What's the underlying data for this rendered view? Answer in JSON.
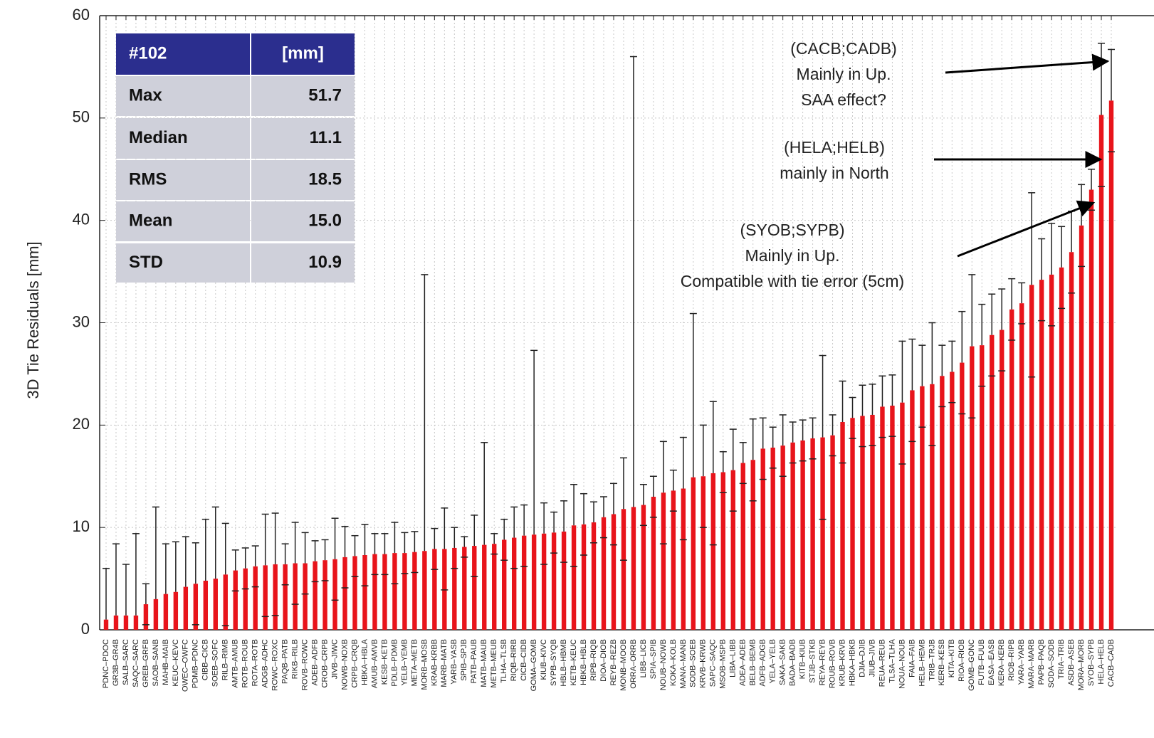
{
  "chart_data": {
    "type": "bar",
    "y_label": "3D Tie Residuals [mm]",
    "color": "#e8141b",
    "error_color": "#222222",
    "grid": true,
    "ylim": [
      0,
      60
    ],
    "yticks": [
      0,
      10,
      20,
      30,
      40,
      50,
      60
    ],
    "categories": [
      "PDNC–PDOC",
      "GR3B–GR4B",
      "SALB–SARC",
      "SAQC–SARC",
      "GREB–GRFB",
      "SAOB–SANB",
      "MAHB–MAIB",
      "KEUC–KEVC",
      "OWEC–OWFC",
      "PDMB–PDNC",
      "CIBB–CICB",
      "SOEB–SOFC",
      "RILB–RIMB",
      "AMTB–AMUB",
      "ROTB–ROUB",
      "ROTA–ROTB",
      "ADGB–ADHC",
      "ROWC–ROXC",
      "PAQB–PATB",
      "RIKB–RILB",
      "ROVB–ROWC",
      "ADEB–ADFB",
      "CROB–CRPB",
      "JIVB–JIWC",
      "NOWB–NOXB",
      "CRPB–CRQB",
      "HBKA–HBLA",
      "AMUB–AMVB",
      "KESB–KETB",
      "PDLB–PDMB",
      "YELB–YEMB",
      "META–METB",
      "MORB–MOSB",
      "KRAB–KRBB",
      "MARB–MATB",
      "YARB–YASB",
      "SPIB–SPJB",
      "PATB–PAUB",
      "MATB–MAUB",
      "METB–MEUB",
      "TLHA–TLSB",
      "RIQB–RIRB",
      "CICB–CIDB",
      "GOMA–GOMB",
      "KIUB–KIVC",
      "SYPB–SYQB",
      "HBLB–HBMB",
      "KETB–KEUC",
      "HBKB–HBLB",
      "RIPB–RIQB",
      "DIOA–DIOB",
      "REYB–REZB",
      "MONB–MOOB",
      "ORRA–ORRB",
      "LIBB–LICB",
      "SPIA–SPIB",
      "NOUB–NOWB",
      "KOKA–KOLB",
      "MANA–MANB",
      "SODB–SOEB",
      "KRVB–KRWB",
      "SAPC–SAQC",
      "MSOB–MSPB",
      "LIBA–LIBB",
      "ADEA–ADEB",
      "BELB–BEMB",
      "ADFB–ADGB",
      "YELA–YELB",
      "SAKA–SAKB",
      "BADA–BADB",
      "KITB–KIUB",
      "STJB–STKB",
      "REYA–REYB",
      "ROUB–ROVB",
      "KRUB–KRVB",
      "HBKA–HBKB",
      "DJIA–DJIB",
      "JIUB–JIVB",
      "REUA–REUB",
      "TLSA–TLHA",
      "NOUA–NOUB",
      "FAIA–FAIB",
      "HELB–HEMB",
      "TRIB–TRJB",
      "KERB–KESB",
      "KITA–KITB",
      "RIOA–RIOB",
      "GOMB–GONC",
      "FUTB–FUUB",
      "EASA–EASB",
      "KERA–KERB",
      "RIOB–RIPB",
      "YARA–YARB",
      "MARA–MARB",
      "PAPB–PAQB",
      "SODA–SODB",
      "TRIA–TRIB",
      "ASDB–ASEB",
      "MORA–MORB",
      "SYOB–SYPB",
      "HELA–HELB",
      "CACB–CADB"
    ],
    "values": [
      1.0,
      1.4,
      1.4,
      1.4,
      2.5,
      3.0,
      3.5,
      3.7,
      4.2,
      4.5,
      4.8,
      5.0,
      5.4,
      5.8,
      6.0,
      6.2,
      6.3,
      6.4,
      6.4,
      6.5,
      6.5,
      6.7,
      6.8,
      6.9,
      7.1,
      7.2,
      7.3,
      7.4,
      7.4,
      7.5,
      7.5,
      7.6,
      7.7,
      7.9,
      7.9,
      8.0,
      8.1,
      8.2,
      8.3,
      8.4,
      8.8,
      9.0,
      9.2,
      9.3,
      9.4,
      9.5,
      9.6,
      10.2,
      10.3,
      10.5,
      11.0,
      11.3,
      11.8,
      12.0,
      12.2,
      13.0,
      13.4,
      13.6,
      13.8,
      14.9,
      15.0,
      15.3,
      15.4,
      15.6,
      16.3,
      16.6,
      17.7,
      17.8,
      18.0,
      18.3,
      18.5,
      18.7,
      18.8,
      19.0,
      20.3,
      20.7,
      20.9,
      21.0,
      21.8,
      21.9,
      22.2,
      23.4,
      23.8,
      24.0,
      24.8,
      25.2,
      26.1,
      27.7,
      27.8,
      28.8,
      29.3,
      31.3,
      31.9,
      33.7,
      34.2,
      34.7,
      35.4,
      36.9,
      39.5,
      43.0,
      50.3,
      51.7
    ],
    "errors": [
      5.0,
      7.0,
      5.0,
      8.0,
      2.0,
      9.0,
      4.9,
      4.9,
      4.9,
      4.0,
      6.0,
      7.0,
      5.0,
      2.0,
      2.0,
      2.0,
      5.0,
      5.0,
      2.0,
      4.0,
      3.0,
      2.0,
      2.0,
      4.0,
      3.0,
      2.0,
      3.0,
      2.0,
      2.0,
      3.0,
      2.0,
      2.0,
      27.0,
      2.0,
      4.0,
      2.0,
      1.0,
      3.0,
      10.0,
      1.0,
      2.0,
      3.0,
      3.0,
      18.0,
      3.0,
      2.0,
      3.0,
      4.0,
      3.0,
      2.0,
      2.0,
      3.0,
      5.0,
      44.0,
      2.0,
      2.0,
      5.0,
      2.0,
      5.0,
      16.0,
      5.0,
      7.0,
      2.0,
      4.0,
      2.0,
      4.0,
      3.0,
      2.0,
      3.0,
      2.0,
      2.0,
      2.0,
      8.0,
      2.0,
      4.0,
      2.0,
      3.0,
      3.0,
      3.0,
      3.0,
      6.0,
      5.0,
      4.0,
      6.0,
      3.0,
      3.0,
      5.0,
      7.0,
      4.0,
      4.0,
      4.0,
      3.0,
      2.0,
      9.0,
      4.0,
      5.0,
      4.0,
      4.0,
      4.0,
      2.0,
      7.0,
      5.0
    ],
    "stats_table": {
      "header": [
        "#102",
        "[mm]"
      ],
      "rows": [
        [
          "Max",
          "51.7"
        ],
        [
          "Median",
          "11.1"
        ],
        [
          "RMS",
          "18.5"
        ],
        [
          "Mean",
          "15.0"
        ],
        [
          "STD",
          "10.9"
        ]
      ]
    },
    "annotations": [
      {
        "lines": [
          "(CACB;CADB)",
          "Mainly in Up.",
          "SAA effect?"
        ]
      },
      {
        "lines": [
          "(HELA;HELB)",
          "mainly in North"
        ]
      },
      {
        "lines": [
          "(SYOB;SYPB)",
          "Mainly in Up.",
          "Compatible with tie error (5cm)"
        ]
      }
    ]
  }
}
